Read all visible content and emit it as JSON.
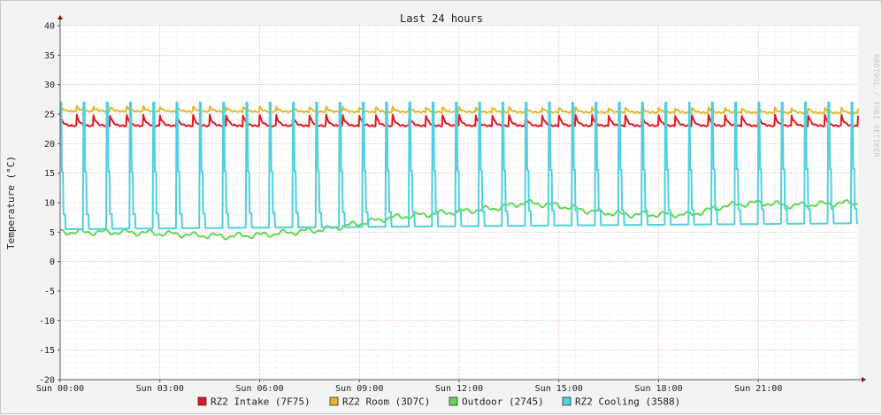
{
  "chart_data": {
    "type": "line",
    "title": "Last 24 hours",
    "ylabel": "Temperature (°C)",
    "watermark": "RRDTOOL / TOBI OETIKER",
    "ylim": [
      -20,
      40
    ],
    "y_ticks": [
      40,
      35,
      30,
      25,
      20,
      15,
      10,
      5,
      0,
      -5,
      -10,
      -15,
      -20
    ],
    "x_ticks": [
      "Sun 00:00",
      "Sun 03:00",
      "Sun 06:00",
      "Sun 09:00",
      "Sun 12:00",
      "Sun 15:00",
      "Sun 18:00",
      "Sun 21:00"
    ],
    "x_range_hours": [
      0,
      24
    ],
    "grid": true,
    "legend_position": "bottom",
    "series": [
      {
        "name": "RZ2 Intake (7F75)",
        "color": "#e8141e",
        "pattern": "periodic",
        "period_hours": 0.5,
        "base": 23,
        "peak": 24.8,
        "x": [
          0,
          24
        ],
        "y": [
          23,
          23
        ]
      },
      {
        "name": "RZ2 Room (3D7C)",
        "color": "#e0b72a",
        "pattern": "periodic",
        "period_hours": 0.5,
        "base": 25.2,
        "peak": 26,
        "x": [
          0,
          24
        ],
        "y": [
          25.5,
          25.2
        ]
      },
      {
        "name": "Outdoor (2745)",
        "color": "#5ed94f",
        "pattern": "trend",
        "x": [
          0,
          1,
          2,
          3,
          4,
          5,
          6,
          7,
          8,
          9,
          10,
          11,
          12,
          13,
          14,
          15,
          16,
          17,
          18,
          19,
          20,
          21,
          22,
          23,
          24
        ],
        "y": [
          5,
          5,
          5,
          4.8,
          4.5,
          4.3,
          4.5,
          5,
          5.5,
          6.5,
          7.5,
          8,
          8.5,
          9,
          10,
          9.5,
          8.5,
          8,
          8,
          8,
          9.5,
          10,
          9.5,
          9.8,
          10
        ]
      },
      {
        "name": "RZ2 Cooling (3588)",
        "color": "#4fd0df",
        "pattern": "periodic",
        "period_hours": 0.7,
        "base": 6,
        "peak": 27,
        "x": [
          0,
          24
        ],
        "y": [
          5.5,
          6.5
        ]
      }
    ]
  }
}
